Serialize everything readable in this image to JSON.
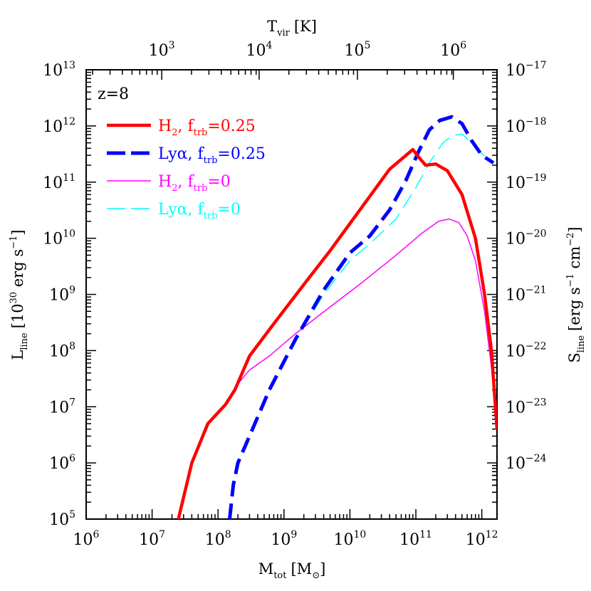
{
  "chart_data": {
    "type": "line",
    "annotation": "z=8",
    "x_axis": {
      "label": "M",
      "label_sub": "tot",
      "label_unit": "[M",
      "label_unit_sym": "⊙",
      "label_unit_close": "]",
      "scale": "log",
      "range": [
        1000000,
        1700000000000.0
      ],
      "tick_exponents": [
        6,
        7,
        8,
        9,
        10,
        11,
        12
      ],
      "tick_base": "10"
    },
    "top_axis": {
      "label": "T",
      "label_sub": "vir",
      "label_unit": "[K]",
      "scale": "log",
      "tick_exponents": [
        3,
        4,
        5,
        6
      ],
      "tick_base": "10",
      "tick_positions_mass": [
        14000000.0,
        420000000.0,
        13000000000.0,
        370000000000.0
      ]
    },
    "y_axis": {
      "label": "L",
      "label_sub": "line",
      "label_unit_open": "[10",
      "label_unit_exp": "30",
      "label_unit_rest": " erg s",
      "label_unit_rest_exp": "−1",
      "label_unit_close": "]",
      "scale": "log",
      "range": [
        100000,
        10000000000000.0
      ],
      "tick_exponents": [
        5,
        6,
        7,
        8,
        9,
        10,
        11,
        12,
        13
      ],
      "tick_base": "10"
    },
    "y2_axis": {
      "label": "S",
      "label_sub": "line",
      "label_unit": "[erg s",
      "label_unit_exp1": "−1",
      "label_unit_mid": " cm",
      "label_unit_exp2": "−2",
      "label_unit_close": "]",
      "scale": "log",
      "tick_exponents": [
        "−17",
        "−18",
        "−19",
        "−20",
        "−21",
        "−22",
        "−23",
        "−24"
      ],
      "tick_base": "10",
      "tick_positions_L": [
        10000000000000.0,
        1000000000000.0,
        100000000000.0,
        10000000000.0,
        1000000000.0,
        100000000.0,
        10000000.0,
        1000000.0
      ]
    },
    "series": [
      {
        "name": "H2, ftrb=0.25",
        "color": "#ff0000",
        "style": "solid-thick",
        "x": [
          25000000.0,
          40000000.0,
          70000000.0,
          130000000.0,
          180000000.0,
          300000000.0,
          700000000.0,
          2000000000.0,
          5000000000.0,
          15000000000.0,
          40000000000.0,
          90000000000.0,
          110000000000.0,
          140000000000.0,
          200000000000.0,
          300000000000.0,
          500000000000.0,
          800000000000.0,
          1100000000000.0,
          1400000000000.0,
          1700000000000.0
        ],
        "y": [
          100000.0,
          1000000.0,
          5000000.0,
          11000000.0,
          20000000.0,
          80000000.0,
          300000000.0,
          1500000000.0,
          6000000000.0,
          35000000000.0,
          170000000000.0,
          380000000000.0,
          280000000000.0,
          200000000000.0,
          210000000000.0,
          160000000000.0,
          60000000000.0,
          10000000000.0,
          1000000000.0,
          100000000.0,
          4000000.0
        ]
      },
      {
        "name": "Lyα, ftrb=0.25",
        "color": "#0000ff",
        "style": "dashed-thick",
        "x": [
          150000000.0,
          170000000.0,
          200000000.0,
          300000000.0,
          600000000.0,
          1500000000.0,
          4000000000.0,
          10000000000.0,
          20000000000.0,
          40000000000.0,
          70000000000.0,
          110000000000.0,
          160000000000.0,
          230000000000.0,
          350000000000.0,
          500000000000.0,
          700000000000.0,
          1000000000000.0,
          1500000000000.0
        ],
        "y": [
          100000.0,
          400000.0,
          1000000.0,
          3000000.0,
          20000000.0,
          160000000.0,
          1200000000.0,
          5500000000.0,
          11000000000.0,
          32000000000.0,
          105000000000.0,
          350000000000.0,
          850000000000.0,
          1250000000000.0,
          1450000000000.0,
          1100000000000.0,
          550000000000.0,
          300000000000.0,
          220000000000.0
        ]
      },
      {
        "name": "H2, ftrb=0",
        "color": "#ff00ff",
        "style": "solid-thin",
        "x": [
          25000000.0,
          40000000.0,
          70000000.0,
          130000000.0,
          180000000.0,
          300000000.0,
          600000000.0,
          1500000000.0,
          5000000000.0,
          15000000000.0,
          50000000000.0,
          120000000000.0,
          220000000000.0,
          320000000000.0,
          450000000000.0,
          600000000000.0,
          800000000000.0,
          1100000000000.0,
          1400000000000.0,
          1700000000000.0
        ],
        "y": [
          100000.0,
          1000000.0,
          5000000.0,
          11000000.0,
          22000000.0,
          45000000.0,
          80000000.0,
          200000000.0,
          600000000.0,
          1600000000.0,
          5000000000.0,
          12000000000.0,
          20000000000.0,
          22000000000.0,
          19000000000.0,
          11000000000.0,
          4000000000.0,
          500000000.0,
          50000000.0,
          4000000.0
        ]
      },
      {
        "name": "Lyα, ftrb=0",
        "color": "#00ffff",
        "style": "dashed-thin",
        "x": [
          150000000.0,
          170000000.0,
          200000000.0,
          300000000.0,
          600000000.0,
          1500000000.0,
          4000000000.0,
          10000000000.0,
          20000000000.0,
          50000000000.0,
          100000000000.0,
          160000000000.0,
          250000000000.0,
          350000000000.0,
          500000000000.0,
          700000000000.0,
          1000000000000.0,
          1500000000000.0
        ],
        "y": [
          100000.0,
          400000.0,
          1000000.0,
          3000000.0,
          20000000.0,
          150000000.0,
          1000000000.0,
          4000000000.0,
          8000000000.0,
          22000000000.0,
          80000000000.0,
          220000000000.0,
          480000000000.0,
          670000000000.0,
          720000000000.0,
          500000000000.0,
          320000000000.0,
          220000000000.0
        ]
      }
    ],
    "legend": {
      "placement": "top-left",
      "entries": [
        {
          "base": "H",
          "base_sub": "2",
          "sep": ",  f",
          "f_sub": "trb",
          "value": "=0.25",
          "color": "#ff0000"
        },
        {
          "base": "Lyα",
          "base_sub": "",
          "sep": ",  f",
          "f_sub": "trb",
          "value": "=0.25",
          "color": "#0000ff"
        },
        {
          "base": "H",
          "base_sub": "2",
          "sep": ",  f",
          "f_sub": "trb",
          "value": "=0",
          "color": "#ff00ff"
        },
        {
          "base": "Lyα",
          "base_sub": "",
          "sep": ",  f",
          "f_sub": "trb",
          "value": "=0",
          "color": "#00ffff"
        }
      ]
    },
    "grid": false
  }
}
